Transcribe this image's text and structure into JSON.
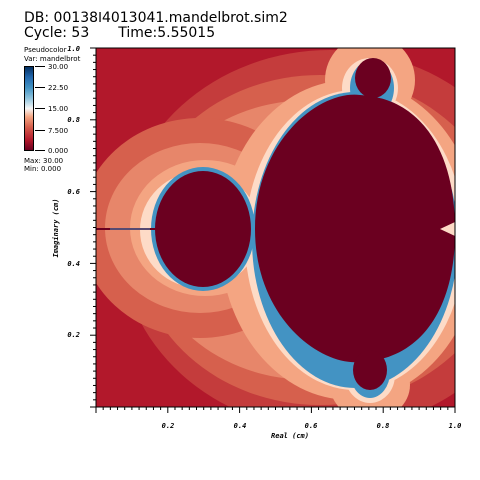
{
  "header": {
    "db_label": "DB: 00138",
    "db_cursor": "I",
    "db_rest": "4013041.mandelbrot.sim2",
    "cycle_label": "Cycle: 53",
    "time_label": "Time:5.55015"
  },
  "legend": {
    "plot_type": "Pseudocolor",
    "variable": "Var: mandelbrot",
    "ticks": [
      "30.00",
      "22.50",
      "15.00",
      "7.500",
      "0.000"
    ],
    "max": "Max: 30.00",
    "min": "Min: 0.000"
  },
  "axes": {
    "xlabel": "Real (cm)",
    "ylabel": "Imaginary (cm)",
    "xticks": [
      "0.2",
      "0.4",
      "0.6",
      "0.8",
      "1.0"
    ],
    "yticks": [
      "0.2",
      "0.4",
      "0.6",
      "0.8",
      "1.0"
    ]
  },
  "colors": {
    "bg": "#ffffff",
    "deep_red": "#6b0020",
    "red": "#b2182b",
    "mid_red": "#d6604d",
    "pink": "#f4a582",
    "light": "#fddbc7",
    "white": "#f7f7f7",
    "light_blue": "#92c5de",
    "blue": "#4393c3",
    "dark_blue": "#2166ac",
    "navy": "#053061"
  }
}
